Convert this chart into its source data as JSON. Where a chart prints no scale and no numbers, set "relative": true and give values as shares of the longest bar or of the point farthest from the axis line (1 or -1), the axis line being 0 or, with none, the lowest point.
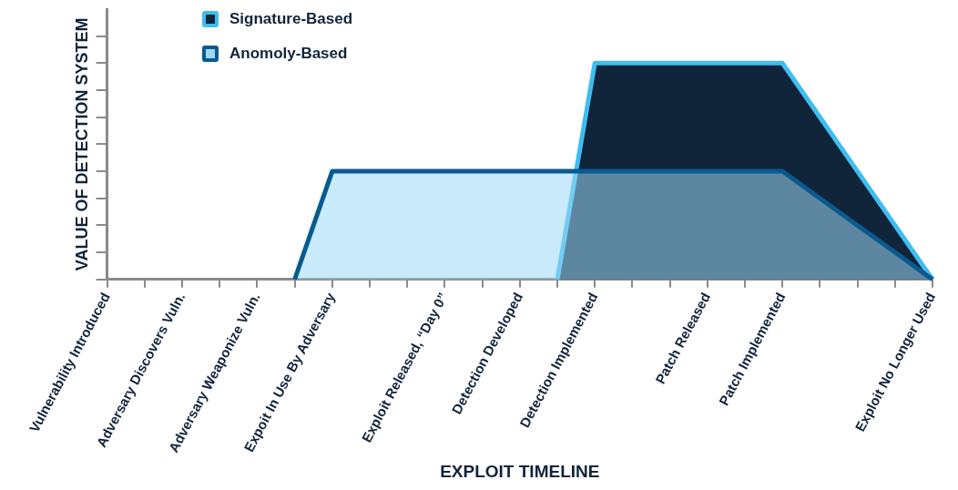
{
  "chart_data": {
    "type": "area",
    "relative": true,
    "xlabel": "EXPLOIT TIMELINE",
    "ylabel": "VALUE OF DETECTION SYSTEM",
    "categories": [
      "Vulnerability Introduced",
      null,
      "Adversary Discovers Vuln.",
      null,
      "Adversary Weaponize Vuln.",
      null,
      "Expoit In Use By Adversary",
      null,
      null,
      "Exploit Released, “Day 0”",
      null,
      "Detection Developed",
      null,
      "Detection Implemented",
      null,
      null,
      "Patch Released",
      null,
      "Patch Implemented",
      null,
      null,
      null,
      "Exploit No Longer Used"
    ],
    "series": [
      {
        "name": "Signature-Based",
        "color": "#10243a",
        "values": [
          null,
          null,
          null,
          null,
          null,
          null,
          null,
          null,
          null,
          null,
          null,
          null,
          0,
          1,
          1,
          1,
          1,
          1,
          1,
          0.75,
          0.5,
          0.25,
          0
        ]
      },
      {
        "name": "Anomoly-Based",
        "color": "#9dd9f5",
        "values": [
          null,
          null,
          null,
          null,
          null,
          0,
          0.5,
          0.5,
          0.5,
          0.5,
          0.5,
          0.5,
          0.5,
          0.5,
          0.5,
          0.5,
          0.5,
          0.5,
          0.5,
          0.375,
          0.25,
          0.125,
          0
        ]
      }
    ],
    "grid": false,
    "legend": "top left"
  }
}
